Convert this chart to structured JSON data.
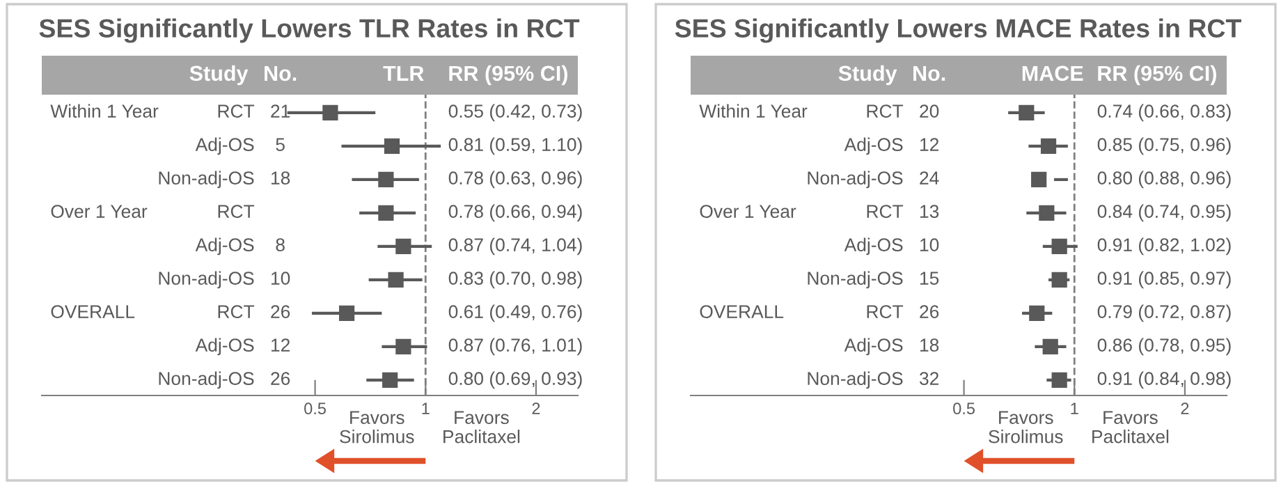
{
  "chart_data": [
    {
      "type": "scatter",
      "orientation": "horizontal",
      "title": "SES Significantly Lowers TLR Rates in RCT",
      "xlabel": "TLR",
      "categories": [
        "RCT",
        "Adj-OS",
        "Non-adj-OS",
        "RCT",
        "Adj-OS",
        "Non-adj-OS",
        "RCT",
        "Adj-OS",
        "Non-adj-OS"
      ],
      "series": [
        {
          "color": "#595959",
          "values": [
            0.55,
            0.81,
            0.78,
            0.78,
            0.87,
            0.83,
            0.61,
            0.87,
            0.8
          ],
          "errors": [
            [
              0.42,
              0.73
            ],
            [
              0.59,
              1.1
            ],
            [
              0.63,
              0.96
            ],
            [
              0.66,
              0.94
            ],
            [
              0.74,
              1.04
            ],
            [
              0.7,
              0.98
            ],
            [
              0.49,
              0.76
            ],
            [
              0.76,
              1.01
            ],
            [
              0.69,
              0.93
            ]
          ]
        }
      ],
      "log": "x",
      "xlim": [
        0.09,
        2.6
      ],
      "xticks": [
        0.5,
        1,
        2
      ],
      "tick_labels": "x",
      "grid": false,
      "legend": false,
      "marker": "square",
      "ref_lines": [
        {
          "axis": "x",
          "value": 1,
          "label": null,
          "color": "#7f7f7f",
          "line_style": "dashed"
        }
      ],
      "annotations": [
        "Study",
        "No.",
        "RR (95% CI)",
        "Favors\nSirolimus",
        "Favors\nPaclitaxel",
        "Within 1 Year\n\n\nOver 1 Year\n\n\nOVERALL",
        "21\n5\n18\n\n8\n10\n26\n12\n26",
        "0.55 (0.42, 0.73)\n0.81 (0.59, 1.10)\n0.78 (0.63, 0.96)\n0.78 (0.66, 0.94)\n0.87 (0.74, 1.04)\n0.83 (0.70, 0.98)\n0.61 (0.49, 0.76)\n0.87 (0.76, 1.01)\n0.80 (0.69, 0.93)"
      ]
    },
    {
      "type": "scatter",
      "orientation": "horizontal",
      "title": "SES Significantly Lowers MACE Rates in RCT",
      "xlabel": "MACE",
      "categories": [
        "RCT",
        "Adj-OS",
        "Non-adj-OS",
        "RCT",
        "Adj-OS",
        "Non-adj-OS",
        "RCT",
        "Adj-OS",
        "Non-adj-OS"
      ],
      "series": [
        {
          "color": "#595959",
          "values": [
            0.74,
            0.85,
            0.8,
            0.84,
            0.91,
            0.91,
            0.79,
            0.86,
            0.91
          ],
          "errors": [
            [
              0.66,
              0.83
            ],
            [
              0.75,
              0.96
            ],
            [
              0.88,
              0.96
            ],
            [
              0.74,
              0.95
            ],
            [
              0.82,
              1.02
            ],
            [
              0.85,
              0.97
            ],
            [
              0.72,
              0.87
            ],
            [
              0.78,
              0.95
            ],
            [
              0.84,
              0.98
            ]
          ]
        }
      ],
      "log": "x",
      "xlim": [
        0.09,
        2.6
      ],
      "xticks": [
        0.5,
        1,
        2
      ],
      "tick_labels": "x",
      "grid": false,
      "legend": false,
      "marker": "square",
      "ref_lines": [
        {
          "axis": "x",
          "value": 1,
          "label": null,
          "color": "#7f7f7f",
          "line_style": "dashed"
        }
      ],
      "annotations": [
        "Study",
        "No.",
        "RR (95% CI)",
        "Favors\nSirolimus",
        "Favors\nPaclitaxel",
        "Within 1 Year\n\n\nOver 1 Year\n\n\nOVERALL",
        "20\n12\n24\n13\n10\n15\n26\n18\n32",
        "0.74 (0.66, 0.83)\n0.85 (0.75, 0.96)\n0.80 (0.88, 0.96)\n0.84 (0.74, 0.95)\n0.91 (0.82, 1.02)\n0.91 (0.85, 0.97)\n0.79 (0.72, 0.87)\n0.86 (0.78, 0.95)\n0.91 (0.84, 0.98)"
      ]
    }
  ]
}
